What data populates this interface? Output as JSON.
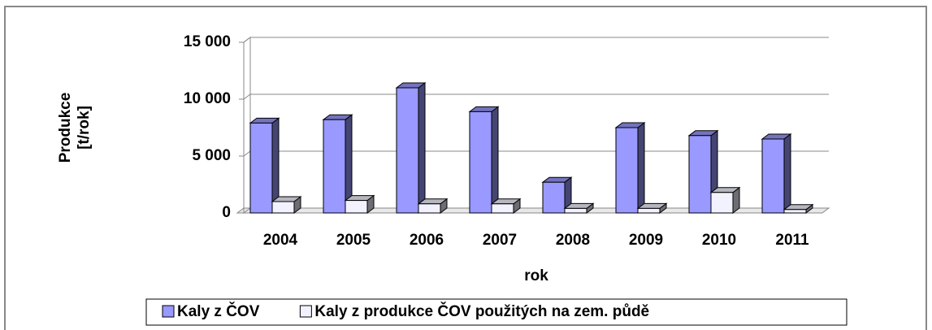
{
  "chart_data": {
    "type": "bar3d",
    "x_label": "rok",
    "y_label": "Produkce [t/rok]",
    "categories": [
      "2004",
      "2005",
      "2006",
      "2007",
      "2008",
      "2009",
      "2010",
      "2011"
    ],
    "series": [
      {
        "name": "Kaly z ČOV",
        "color": "#9999ff",
        "values": [
          7900,
          8200,
          11000,
          8900,
          2700,
          7500,
          6800,
          6500
        ]
      },
      {
        "name": "Kaly z produkce ČOV použitých na zem. půdě",
        "color": "#f2f2ff",
        "values": [
          1000,
          1100,
          800,
          800,
          400,
          400,
          1800,
          300
        ]
      }
    ],
    "ylim": [
      0,
      15000
    ],
    "yticks": [
      0,
      {
        "value": 5000,
        "label": "5 000"
      },
      {
        "value": 10000,
        "label": "10 000"
      },
      {
        "value": 15000,
        "label": "15 000"
      }
    ],
    "grid": true,
    "legend": "bottom"
  }
}
